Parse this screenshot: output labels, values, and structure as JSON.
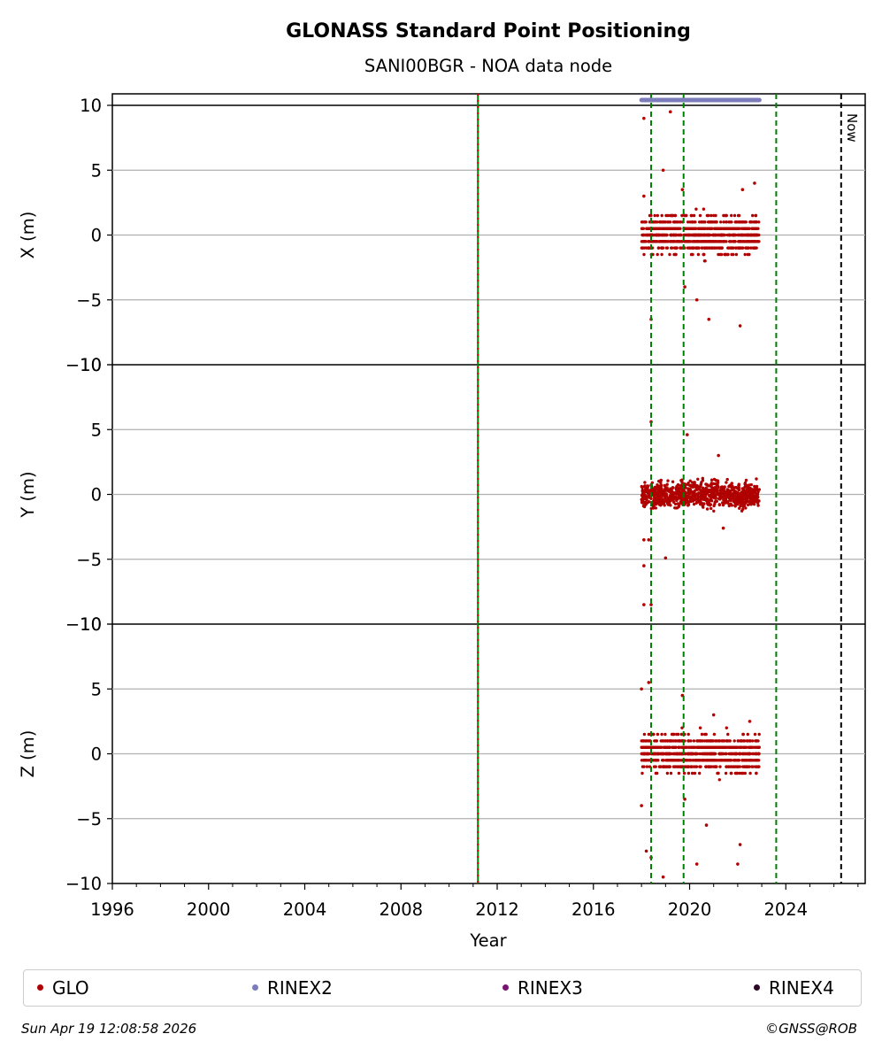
{
  "chart_data": {
    "type": "scatter",
    "title": "GLONASS Standard Point Positioning",
    "subtitle": "SANI00BGR - NOA data node",
    "xlabel": "Year",
    "xlim": [
      1996,
      2027.3
    ],
    "x_ticks": [
      "1996",
      "2000",
      "2004",
      "2008",
      "2012",
      "2016",
      "2020",
      "2024"
    ],
    "now_label": "Now",
    "now_x": 2026.3,
    "panels": [
      {
        "ylabel": "X (m)",
        "ylim": [
          -10,
          10
        ],
        "ytick_labels": [
          "−10",
          "−5",
          "0",
          "5",
          "10"
        ],
        "spread": 1.0,
        "outliers": [
          [
            2018.1,
            9.0
          ],
          [
            2018.1,
            3.0
          ],
          [
            2018.4,
            -6.5
          ],
          [
            2018.9,
            5.0
          ],
          [
            2019.2,
            9.5
          ],
          [
            2019.7,
            3.5
          ],
          [
            2019.8,
            -4.0
          ],
          [
            2020.3,
            -5.0
          ],
          [
            2020.8,
            -6.5
          ],
          [
            2022.1,
            -7.0
          ],
          [
            2022.2,
            3.5
          ],
          [
            2022.7,
            4.0
          ]
        ]
      },
      {
        "ylabel": "Y (m)",
        "ylim": [
          -10,
          10
        ],
        "ytick_labels": [
          "−10",
          "−5",
          "0",
          "5",
          "10"
        ],
        "spread": 0.7,
        "outliers": [
          [
            2018.4,
            5.6
          ],
          [
            2018.1,
            -3.5
          ],
          [
            2018.3,
            -3.5
          ],
          [
            2018.1,
            -5.5
          ],
          [
            2018.1,
            -8.5
          ],
          [
            2018.4,
            -8.5
          ],
          [
            2019.0,
            -4.9
          ],
          [
            2019.9,
            4.6
          ],
          [
            2021.2,
            3.0
          ],
          [
            2021.4,
            -2.6
          ]
        ]
      },
      {
        "ylabel": "Z (m)",
        "ylim": [
          -10,
          10
        ],
        "ytick_labels": [
          "−10",
          "−5",
          "0",
          "5",
          "10"
        ],
        "spread": 1.0,
        "outliers": [
          [
            2018.0,
            5.0
          ],
          [
            2018.0,
            -4.0
          ],
          [
            2018.2,
            -7.5
          ],
          [
            2018.3,
            5.5
          ],
          [
            2018.4,
            -8.0
          ],
          [
            2018.9,
            -9.5
          ],
          [
            2019.7,
            4.5
          ],
          [
            2019.8,
            -3.5
          ],
          [
            2020.3,
            -8.5
          ],
          [
            2020.7,
            -5.5
          ],
          [
            2021.0,
            3.0
          ],
          [
            2022.0,
            -8.5
          ],
          [
            2022.1,
            -7.0
          ],
          [
            2022.5,
            2.5
          ]
        ]
      }
    ],
    "glo_data_range": [
      2018.0,
      2022.9
    ],
    "rinex2_bar": [
      2018.0,
      2022.9
    ],
    "green_dashed_lines": [
      2018.4,
      2019.75,
      2023.6
    ],
    "red_green_line": 2011.2,
    "legend": [
      {
        "label": "GLO",
        "color": "#b00000"
      },
      {
        "label": "RINEX2",
        "color": "#7c7cbb"
      },
      {
        "label": "RINEX3",
        "color": "#7a1472"
      },
      {
        "label": "RINEX4",
        "color": "#2a0a24"
      }
    ],
    "colors": {
      "glo": "#b00000",
      "rinex2": "#7c7cbb",
      "green_line": "#008000",
      "red_line": "#cc0000",
      "grid": "#b0b0b0",
      "now_line": "#000000"
    },
    "grid": true
  },
  "footer": {
    "timestamp": "Sun Apr 19 12:08:58 2026",
    "credit": "©GNSS@ROB"
  }
}
